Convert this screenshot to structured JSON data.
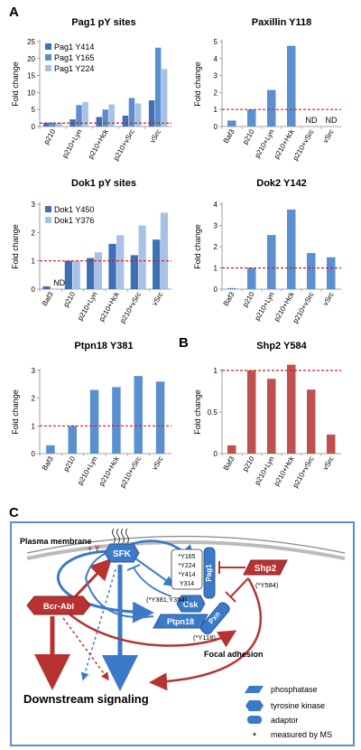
{
  "panel_letters": {
    "a": "A",
    "b": "B",
    "c": "C"
  },
  "colors": {
    "dark_blue": "#3f6fb4",
    "mid_blue": "#5b8fd0",
    "light_blue": "#a9c1e6",
    "red_bar": "#c0504d",
    "ref_line": "#cc1f1f",
    "diagram_blue": "#3a7ac8",
    "diagram_red": "#b83232",
    "frame": "#5b8fd0"
  },
  "chart_data": [
    {
      "id": "pag1",
      "type": "bar",
      "title": "Pag1 pY sites",
      "ylabel": "Fold change",
      "categories": [
        "p210",
        "p210+Lyn",
        "p210+Hck",
        "p210+vSrc",
        "vSrc"
      ],
      "series": [
        {
          "name": "Pag1 Y414",
          "values": [
            1.1,
            2.1,
            2.8,
            3.2,
            7.7
          ]
        },
        {
          "name": "Pag1 Y165",
          "values": [
            1.2,
            6.3,
            5.0,
            8.4,
            23.2
          ]
        },
        {
          "name": "Pag1 Y224",
          "values": [
            1.1,
            7.2,
            6.5,
            6.8,
            16.9
          ]
        }
      ],
      "ylim": [
        0,
        25
      ],
      "yticks": [
        0,
        5,
        10,
        15,
        20,
        25
      ],
      "ref_line": 1,
      "legend": "top-left"
    },
    {
      "id": "pxn",
      "type": "bar",
      "title": "Paxillin Y118",
      "ylabel": "Fold change",
      "categories": [
        "Baf3",
        "p210",
        "p210+Lyn",
        "p210+Hck",
        "p210+vSrc",
        "vSrc"
      ],
      "series": [
        {
          "values": [
            0.35,
            1.0,
            2.15,
            4.75,
            null,
            null
          ]
        }
      ],
      "na": [
        null,
        null,
        null,
        null,
        "ND",
        "ND"
      ],
      "ylim": [
        0,
        5
      ],
      "yticks": [
        0,
        1,
        2,
        3,
        4,
        5
      ],
      "ref_line": 1
    },
    {
      "id": "dok1",
      "type": "bar",
      "title": "Dok1 pY sites",
      "ylabel": "Fold change",
      "categories": [
        "Baf3",
        "p210",
        "p210+Lyn",
        "p210+Hck",
        "p210+vSrc",
        "vSrc"
      ],
      "series": [
        {
          "name": "Dok1 Y450",
          "values": [
            0.1,
            1.0,
            1.1,
            1.6,
            1.2,
            1.75
          ]
        },
        {
          "name": "Dok1 Y376",
          "values": [
            null,
            1.0,
            1.3,
            1.9,
            2.25,
            2.7
          ]
        }
      ],
      "na": [
        [
          "",
          "ND"
        ]
      ],
      "ylim": [
        0,
        3
      ],
      "yticks": [
        0,
        1,
        2,
        3
      ],
      "ref_line": 1,
      "legend": "top-left"
    },
    {
      "id": "dok2",
      "type": "bar",
      "title": "Dok2 Y142",
      "ylabel": "Fold change",
      "categories": [
        "Baf3",
        "p210",
        "p210+Lyn",
        "p210+Hck",
        "p210+vSrc",
        "vSrc"
      ],
      "series": [
        {
          "values": [
            0.05,
            1.0,
            2.55,
            3.75,
            1.7,
            1.5
          ]
        }
      ],
      "ylim": [
        0,
        4
      ],
      "yticks": [
        0,
        1,
        2,
        3,
        4
      ],
      "ref_line": 1
    },
    {
      "id": "ptpn18",
      "type": "bar",
      "title": "Ptpn18 Y381",
      "ylabel": "Fold change",
      "categories": [
        "Baf3",
        "p210",
        "p210+Lyn",
        "p210+Hck",
        "p210+vSrc",
        "vSrc"
      ],
      "series": [
        {
          "values": [
            0.3,
            1.0,
            2.3,
            2.4,
            2.8,
            2.6
          ]
        }
      ],
      "ylim": [
        0,
        3
      ],
      "yticks": [
        0,
        1,
        2,
        3
      ],
      "ref_line": 1
    },
    {
      "id": "shp2",
      "type": "bar",
      "title": "Shp2 Y584",
      "ylabel": "Fold change",
      "categories": [
        "Baf3",
        "p210",
        "p210+Lyn",
        "p210+Hck",
        "p210+vSrc",
        "vSrc"
      ],
      "series": [
        {
          "values": [
            0.1,
            1.0,
            0.9,
            1.07,
            0.77,
            0.23
          ]
        }
      ],
      "ylim": [
        0,
        1
      ],
      "yticks": [
        0,
        0.5,
        1
      ],
      "ref_line": 1
    }
  ],
  "diagram": {
    "membrane_label": "Plasma membrane",
    "nodes": {
      "sfk": "SFK",
      "pag1": "Pag1",
      "csk": "Csk",
      "ptpn18": "Ptpn18",
      "pxn": "Pxn",
      "shp2": "Shp2",
      "bcr_abl": "Bcr-Abl"
    },
    "plus_y": "+ Y",
    "pag1_sites": [
      "*Y165",
      "*Y224",
      "*Y414",
      "Y314"
    ],
    "ptpn18_sites": "(*Y381,Y354)",
    "pxn_site": "(*Y118)",
    "shp2_site": "(*Y584)",
    "focal_adhesion": "Focal adhesion",
    "downstream": "Downstream signaling",
    "legend": {
      "phosphatase": "phosphatase",
      "kinase": "tyrosine kinase",
      "adaptor": "adaptor",
      "star": "*",
      "measured": "measured by MS"
    }
  }
}
